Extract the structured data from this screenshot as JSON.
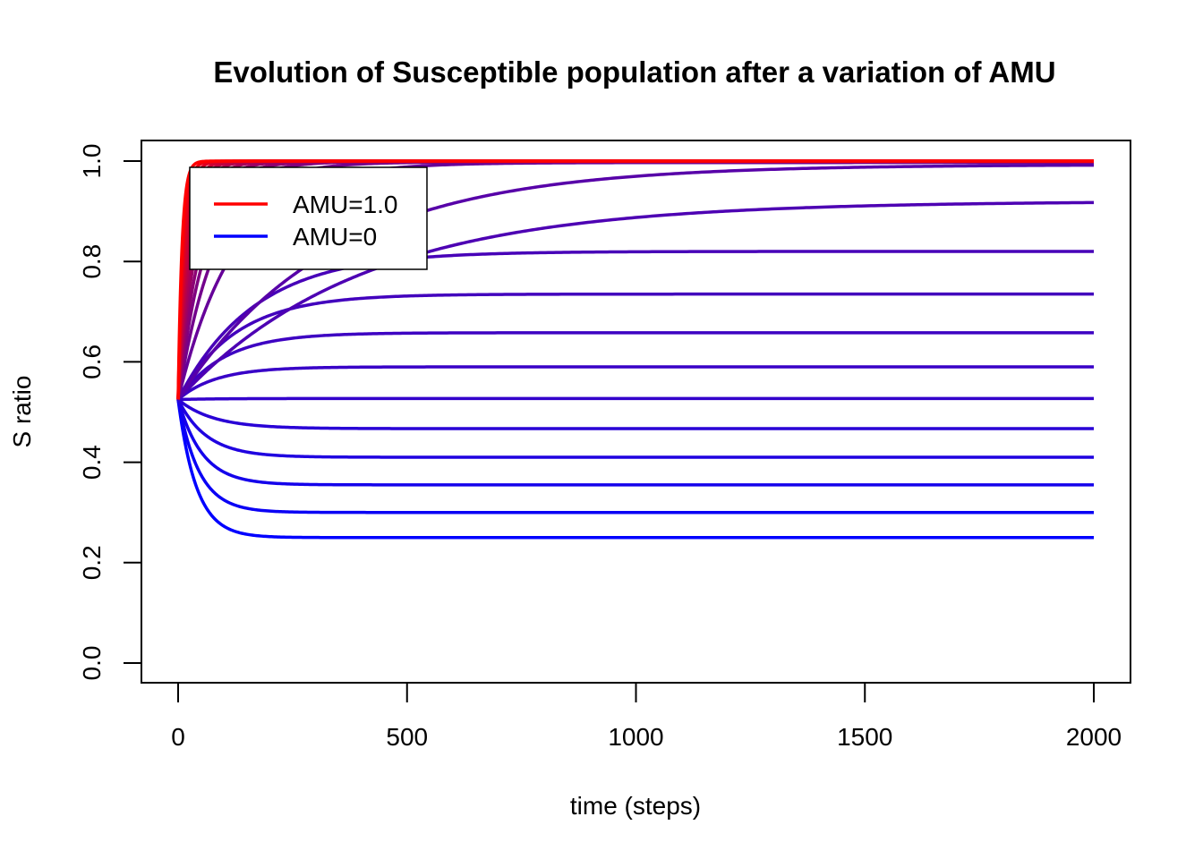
{
  "chart_data": {
    "type": "line",
    "title": "Evolution of Susceptible population after a variation of  AMU",
    "xlabel": "time (steps)",
    "ylabel": "S ratio",
    "xlim": [
      0,
      2000
    ],
    "ylim": [
      0,
      1.0
    ],
    "x_ticks": [
      "0",
      "500",
      "1000",
      "1500",
      "2000"
    ],
    "y_ticks": [
      "0.0",
      "0.2",
      "0.4",
      "0.6",
      "0.8",
      "1.0"
    ],
    "legend": {
      "position": "top-left",
      "entries": [
        {
          "label": "AMU=1.0",
          "color": "#ff0000"
        },
        {
          "label": "AMU=0",
          "color": "#0000ff"
        }
      ]
    },
    "grid": false,
    "initial_value": 0.525,
    "colors": {
      "start": "#0000ff",
      "end": "#ff0000"
    },
    "series": [
      {
        "final": 0.25,
        "rate": 0.025,
        "mix": 0.0
      },
      {
        "final": 0.3,
        "rate": 0.022,
        "mix": 0.04
      },
      {
        "final": 0.355,
        "rate": 0.019,
        "mix": 0.08
      },
      {
        "final": 0.41,
        "rate": 0.016,
        "mix": 0.12
      },
      {
        "final": 0.467,
        "rate": 0.013,
        "mix": 0.16
      },
      {
        "final": 0.527,
        "rate": 0.011,
        "mix": 0.2
      },
      {
        "final": 0.59,
        "rate": 0.012,
        "mix": 0.22
      },
      {
        "final": 0.658,
        "rate": 0.01,
        "mix": 0.24
      },
      {
        "final": 0.735,
        "rate": 0.008,
        "mix": 0.26
      },
      {
        "final": 0.82,
        "rate": 0.006,
        "mix": 0.28
      },
      {
        "final": 0.92,
        "rate": 0.0025,
        "mix": 0.3
      },
      {
        "final": 0.993,
        "rate": 0.003,
        "mix": 0.34
      },
      {
        "final": 0.997,
        "rate": 0.008,
        "mix": 0.4
      },
      {
        "final": 0.998,
        "rate": 0.012,
        "mix": 0.45
      },
      {
        "final": 0.999,
        "rate": 0.016,
        "mix": 0.5
      },
      {
        "final": 0.999,
        "rate": 0.02,
        "mix": 0.55
      },
      {
        "final": 0.999,
        "rate": 0.025,
        "mix": 0.6
      },
      {
        "final": 1.0,
        "rate": 0.03,
        "mix": 0.65
      },
      {
        "final": 1.0,
        "rate": 0.037,
        "mix": 0.7
      },
      {
        "final": 1.0,
        "rate": 0.045,
        "mix": 0.75
      },
      {
        "final": 1.0,
        "rate": 0.055,
        "mix": 0.8
      },
      {
        "final": 1.0,
        "rate": 0.07,
        "mix": 0.86
      },
      {
        "final": 1.0,
        "rate": 0.09,
        "mix": 0.92
      },
      {
        "final": 1.0,
        "rate": 0.12,
        "mix": 1.0
      }
    ]
  }
}
